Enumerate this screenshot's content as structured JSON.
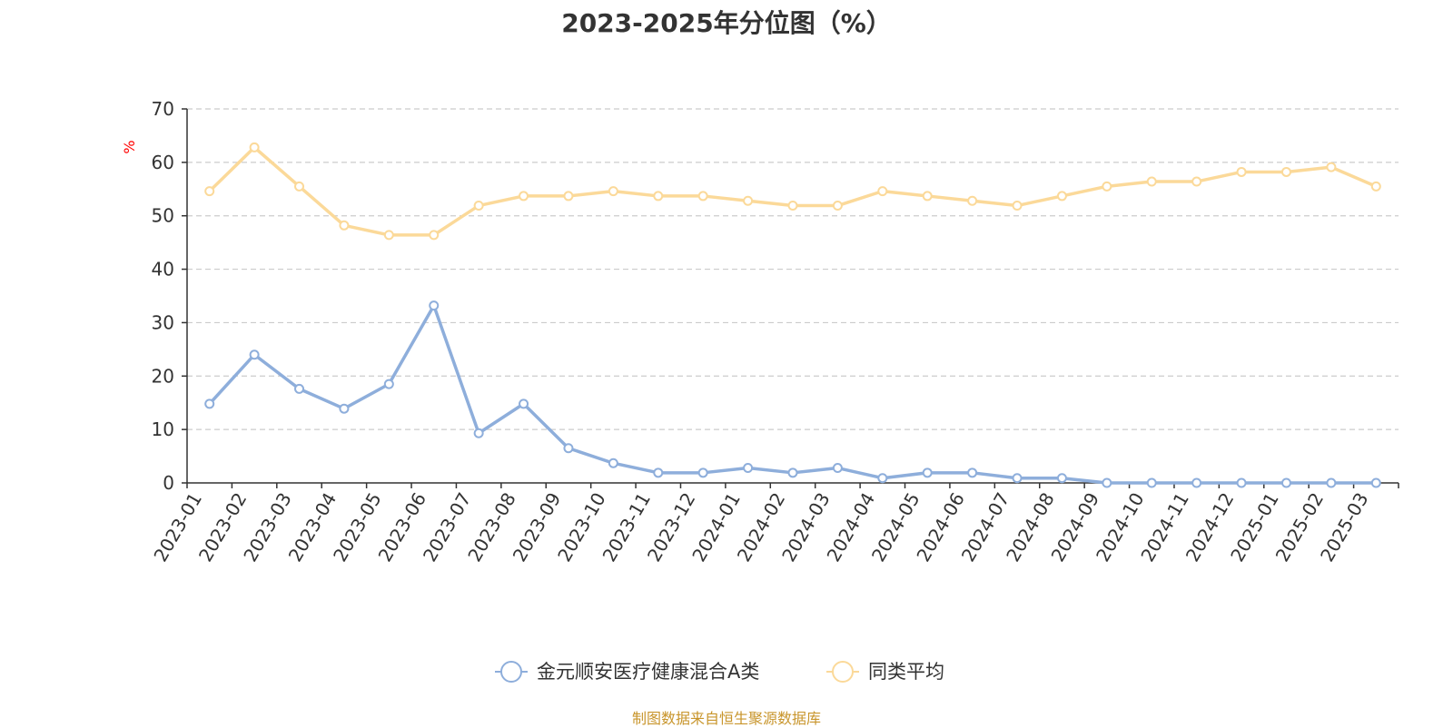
{
  "chart_data": {
    "type": "line",
    "title": "2023-2025年分位图（%）",
    "ylabel": "%",
    "ylim": [
      0,
      70
    ],
    "yticks": [
      0,
      10,
      20,
      30,
      40,
      50,
      60,
      70
    ],
    "grid": true,
    "legend_position": "bottom-center",
    "categories": [
      "2023-01",
      "2023-02",
      "2023-03",
      "2023-04",
      "2023-05",
      "2023-06",
      "2023-07",
      "2023-08",
      "2023-09",
      "2023-10",
      "2023-11",
      "2023-12",
      "2024-01",
      "2024-02",
      "2024-03",
      "2024-04",
      "2024-05",
      "2024-06",
      "2024-07",
      "2024-08",
      "2024-09",
      "2024-10",
      "2024-11",
      "2024-12",
      "2025-01",
      "2025-02",
      "2025-03"
    ],
    "series": [
      {
        "name": "金元顺安医疗健康混合A类",
        "color": "#8eaedb",
        "values": [
          14.8,
          24.0,
          17.6,
          13.9,
          18.5,
          33.2,
          9.3,
          14.8,
          6.5,
          3.7,
          1.9,
          1.9,
          2.8,
          1.9,
          2.8,
          0.9,
          1.9,
          1.9,
          0.9,
          0.9,
          0.0,
          0.0,
          0.0,
          0.0,
          0.0,
          0.0,
          0.0
        ]
      },
      {
        "name": "同类平均",
        "color": "#fbd999",
        "values": [
          54.6,
          62.8,
          55.5,
          48.2,
          46.4,
          46.4,
          51.9,
          53.7,
          53.7,
          54.6,
          53.7,
          53.7,
          52.8,
          51.9,
          51.9,
          54.6,
          53.7,
          52.8,
          51.9,
          53.7,
          55.5,
          56.4,
          56.4,
          58.2,
          58.2,
          59.1,
          55.5
        ]
      }
    ],
    "source": "制图数据来自恒生聚源数据库"
  }
}
